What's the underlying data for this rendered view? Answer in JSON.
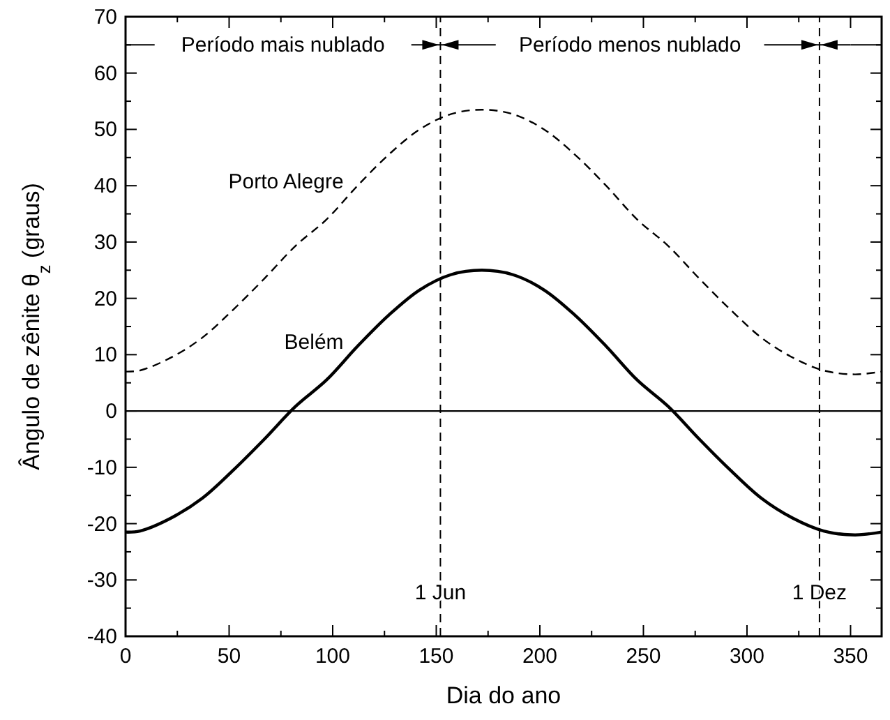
{
  "chart_data": {
    "type": "line",
    "xlabel": "Dia do ano",
    "ylabel": "Ângulo de zênite θ$_{z}$ (graus)",
    "xlim": [
      0,
      365
    ],
    "ylim": [
      -40,
      70
    ],
    "xticks": [
      0,
      {
        "value": 25,
        "label": null
      },
      50,
      {
        "value": 75,
        "label": null
      },
      100,
      {
        "value": 125,
        "label": null
      },
      150,
      {
        "value": 175,
        "label": null
      },
      200,
      {
        "value": 225,
        "label": null
      },
      250,
      {
        "value": 275,
        "label": null
      },
      300,
      {
        "value": 325,
        "label": null
      },
      350
    ],
    "yticks": [
      -40,
      {
        "value": -35,
        "label": null
      },
      -30,
      {
        "value": -25,
        "label": null
      },
      -20,
      {
        "value": -15,
        "label": null
      },
      -10,
      {
        "value": -5,
        "label": null
      },
      0,
      {
        "value": 5,
        "label": null
      },
      10,
      {
        "value": 15,
        "label": null
      },
      20,
      {
        "value": 25,
        "label": null
      },
      30,
      {
        "value": 35,
        "label": null
      },
      40,
      {
        "value": 45,
        "label": null
      },
      50,
      {
        "value": 55,
        "label": null
      },
      60,
      {
        "value": 65,
        "label": null
      },
      70
    ],
    "x": [
      0,
      7,
      22,
      37,
      52,
      67,
      82,
      97,
      112,
      127,
      142,
      157,
      172,
      187,
      202,
      217,
      232,
      247,
      262,
      277,
      292,
      307,
      322,
      337,
      352,
      365
    ],
    "series": [
      {
        "name": "Porto Alegre",
        "color": "#000000",
        "line_style": "dashed",
        "values": [
          7,
          7.2,
          9.5,
          13,
          18,
          23.5,
          29.3,
          34,
          40,
          45.5,
          50,
          52.7,
          53.5,
          52.7,
          50,
          45.5,
          40,
          34,
          29.3,
          23.5,
          18,
          13,
          9.5,
          7.2,
          6.5,
          7
        ]
      },
      {
        "name": "Belém",
        "color": "#000000",
        "line_style": "solid",
        "values": [
          -21.5,
          -21.3,
          -19,
          -15.5,
          -10.5,
          -5,
          0.8,
          5.5,
          11.5,
          17,
          21.5,
          24.2,
          25,
          24.2,
          21.5,
          17,
          11.5,
          5.5,
          0.8,
          -5,
          -10.5,
          -15.5,
          -19,
          -21.3,
          -22,
          -21.5
        ]
      }
    ],
    "ref_lines": [
      {
        "axis": "y",
        "value": 0,
        "line_style": "solid"
      },
      {
        "axis": "x",
        "value": 152,
        "label": "1 Jun",
        "line_style": "dashed"
      },
      {
        "axis": "x",
        "value": 335,
        "label": "1 Dez",
        "line_style": "dashed"
      }
    ],
    "annotations": [
      {
        "text": "Período mais nublado",
        "x": 152,
        "y": 65
      },
      {
        "text": "Período menos nublado",
        "x": 335,
        "y": 65
      }
    ],
    "grid": false
  }
}
